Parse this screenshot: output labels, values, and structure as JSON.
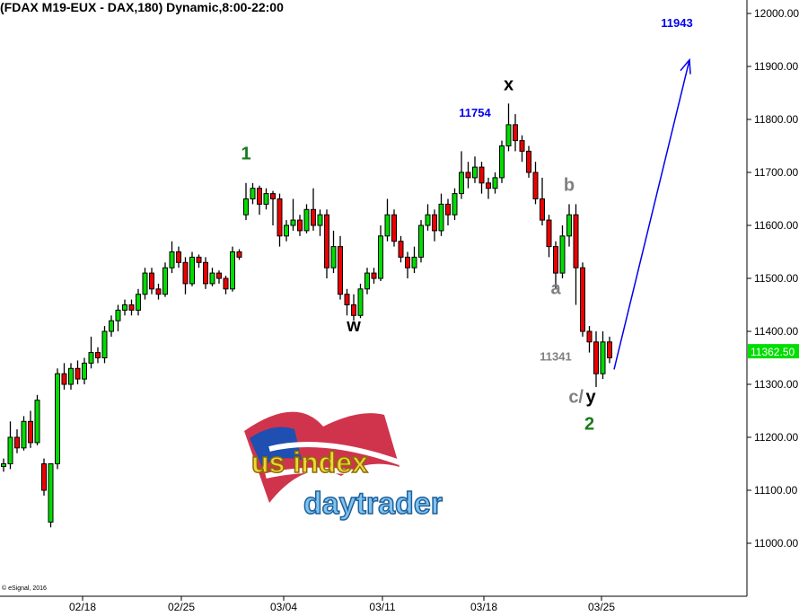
{
  "header": {
    "title": "(FDAX M19-EUX - DAX,180) Dynamic,8:00-22:00"
  },
  "footer": {
    "copyright": "© eSignal, 2016"
  },
  "logo": {
    "line1": "us index",
    "line2": "daytrader"
  },
  "colors": {
    "up": "#00dd00",
    "down": "#ee0000",
    "projection": "#0000ee",
    "wave_green": "#1a7a1a",
    "wave_gray": "#808080",
    "price_box": "#00dd00"
  },
  "chart_data": {
    "type": "candlestick",
    "title": "(FDAX M19-EUX - DAX,180) Dynamic,8:00-22:00",
    "ylim": [
      10920,
      12060
    ],
    "y_ticks": [
      "12000.00",
      "11900.00",
      "11800.00",
      "11700.00",
      "11600.00",
      "11500.00",
      "11400.00",
      "11300.00",
      "11200.00",
      "11100.00",
      "11000.00"
    ],
    "x_ticks": [
      "02/18",
      "02/25",
      "03/04",
      "03/11",
      "03/18",
      "03/25"
    ],
    "current_price": "11362.50",
    "grid": false,
    "ohlc": [
      [
        11145,
        11160,
        11135,
        11150
      ],
      [
        11150,
        11230,
        11140,
        11200
      ],
      [
        11200,
        11215,
        11170,
        11180
      ],
      [
        11180,
        11240,
        11175,
        11230
      ],
      [
        11230,
        11250,
        11180,
        11190
      ],
      [
        11190,
        11280,
        11185,
        11270
      ],
      [
        11150,
        11160,
        11090,
        11100
      ],
      [
        11040,
        11150,
        11030,
        11150
      ],
      [
        11150,
        11330,
        11140,
        11320
      ],
      [
        11320,
        11340,
        11290,
        11300
      ],
      [
        11300,
        11340,
        11290,
        11330
      ],
      [
        11330,
        11345,
        11300,
        11310
      ],
      [
        11310,
        11350,
        11300,
        11340
      ],
      [
        11340,
        11390,
        11330,
        11360
      ],
      [
        11360,
        11370,
        11340,
        11350
      ],
      [
        11350,
        11410,
        11340,
        11400
      ],
      [
        11400,
        11430,
        11390,
        11420
      ],
      [
        11420,
        11450,
        11400,
        11440
      ],
      [
        11440,
        11460,
        11430,
        11450
      ],
      [
        11450,
        11460,
        11430,
        11440
      ],
      [
        11440,
        11480,
        11430,
        11470
      ],
      [
        11470,
        11520,
        11460,
        11510
      ],
      [
        11510,
        11520,
        11470,
        11480
      ],
      [
        11480,
        11490,
        11460,
        11470
      ],
      [
        11470,
        11530,
        11465,
        11520
      ],
      [
        11520,
        11570,
        11510,
        11550
      ],
      [
        11550,
        11560,
        11520,
        11530
      ],
      [
        11530,
        11540,
        11470,
        11490
      ],
      [
        11490,
        11550,
        11485,
        11540
      ],
      [
        11540,
        11545,
        11520,
        11530
      ],
      [
        11530,
        11540,
        11480,
        11490
      ],
      [
        11490,
        11520,
        11485,
        11510
      ],
      [
        11510,
        11515,
        11490,
        11500
      ],
      [
        11500,
        11505,
        11470,
        11480
      ],
      [
        11480,
        11560,
        11475,
        11550
      ],
      [
        11550,
        11555,
        11535,
        11540
      ],
      [
        11620,
        11680,
        11610,
        11650
      ],
      [
        11650,
        11680,
        11640,
        11670
      ],
      [
        11670,
        11675,
        11620,
        11640
      ],
      [
        11640,
        11670,
        11630,
        11660
      ],
      [
        11660,
        11665,
        11600,
        11650
      ],
      [
        11650,
        11660,
        11560,
        11580
      ],
      [
        11580,
        11610,
        11570,
        11600
      ],
      [
        11600,
        11650,
        11590,
        11610
      ],
      [
        11610,
        11620,
        11580,
        11590
      ],
      [
        11590,
        11640,
        11585,
        11630
      ],
      [
        11630,
        11670,
        11590,
        11600
      ],
      [
        11600,
        11630,
        11580,
        11620
      ],
      [
        11620,
        11630,
        11500,
        11520
      ],
      [
        11520,
        11590,
        11510,
        11560
      ],
      [
        11560,
        11580,
        11460,
        11470
      ],
      [
        11470,
        11480,
        11430,
        11450
      ],
      [
        11450,
        11470,
        11420,
        11430
      ],
      [
        11430,
        11490,
        11425,
        11480
      ],
      [
        11480,
        11520,
        11470,
        11510
      ],
      [
        11510,
        11520,
        11490,
        11500
      ],
      [
        11500,
        11600,
        11495,
        11580
      ],
      [
        11580,
        11650,
        11570,
        11620
      ],
      [
        11620,
        11630,
        11560,
        11570
      ],
      [
        11570,
        11580,
        11530,
        11540
      ],
      [
        11540,
        11550,
        11500,
        11520
      ],
      [
        11520,
        11560,
        11510,
        11540
      ],
      [
        11540,
        11610,
        11530,
        11600
      ],
      [
        11600,
        11640,
        11590,
        11620
      ],
      [
        11620,
        11630,
        11570,
        11590
      ],
      [
        11590,
        11660,
        11580,
        11640
      ],
      [
        11640,
        11650,
        11600,
        11620
      ],
      [
        11620,
        11670,
        11610,
        11660
      ],
      [
        11660,
        11740,
        11650,
        11700
      ],
      [
        11700,
        11720,
        11670,
        11690
      ],
      [
        11690,
        11730,
        11680,
        11710
      ],
      [
        11710,
        11720,
        11660,
        11680
      ],
      [
        11680,
        11690,
        11650,
        11670
      ],
      [
        11670,
        11700,
        11660,
        11690
      ],
      [
        11690,
        11760,
        11680,
        11750
      ],
      [
        11750,
        11830,
        11740,
        11790
      ],
      [
        11790,
        11810,
        11740,
        11760
      ],
      [
        11760,
        11770,
        11720,
        11740
      ],
      [
        11740,
        11750,
        11690,
        11700
      ],
      [
        11700,
        11720,
        11640,
        11650
      ],
      [
        11650,
        11690,
        11600,
        11610
      ],
      [
        11610,
        11620,
        11540,
        11560
      ],
      [
        11560,
        11570,
        11480,
        11510
      ],
      [
        11510,
        11600,
        11500,
        11580
      ],
      [
        11580,
        11640,
        11560,
        11620
      ],
      [
        11620,
        11640,
        11450,
        11520
      ],
      [
        11520,
        11530,
        11390,
        11400
      ],
      [
        11400,
        11410,
        11360,
        11380
      ],
      [
        11380,
        11400,
        11295,
        11320
      ],
      [
        11320,
        11400,
        11310,
        11380
      ],
      [
        11380,
        11390,
        11340,
        11350
      ]
    ],
    "annotations": [
      {
        "text": "1",
        "bar": 36,
        "price": 11725,
        "color": "#1a7a1a"
      },
      {
        "text": "w",
        "bar": 52,
        "price": 11400,
        "color": "#000000"
      },
      {
        "text": "x",
        "bar": 75,
        "price": 11855,
        "color": "#000000"
      },
      {
        "text": "11754",
        "bar": 70,
        "price": 11805,
        "color": "#0000ee"
      },
      {
        "text": "b",
        "bar": 84,
        "price": 11665,
        "color": "#808080"
      },
      {
        "text": "a",
        "bar": 82,
        "price": 11470,
        "color": "#808080"
      },
      {
        "text": "11341",
        "bar": 82,
        "price": 11345,
        "color": "#808080"
      },
      {
        "text": "c/",
        "bar": 86,
        "price": 11265,
        "color": "#808080"
      },
      {
        "text": "y",
        "bar": 87,
        "price": 11265,
        "color": "#000000"
      },
      {
        "text": "2",
        "bar": 87,
        "price": 11225,
        "color": "#1a7a1a"
      },
      {
        "text": "11943",
        "bar": 100,
        "price": 11975,
        "color": "#0000ee"
      }
    ],
    "projection": {
      "from": 11345,
      "to": 11943
    }
  }
}
